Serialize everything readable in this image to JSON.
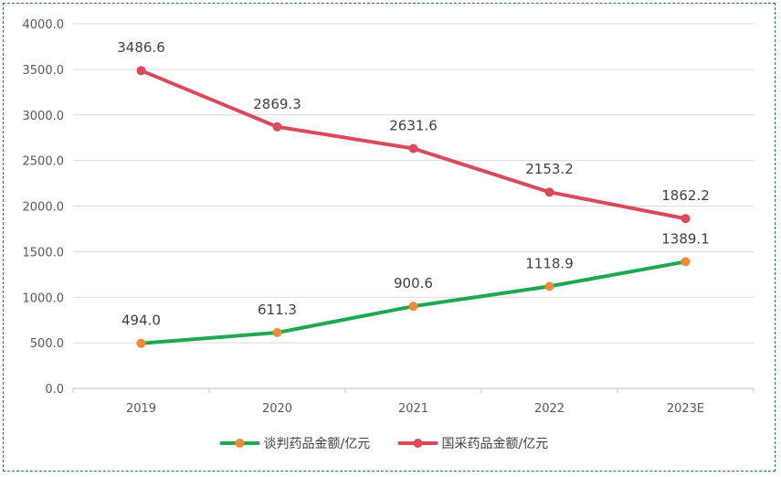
{
  "chart_data": {
    "type": "line",
    "categories": [
      "2019",
      "2020",
      "2021",
      "2022",
      "2023E"
    ],
    "ylim": [
      0,
      4000
    ],
    "yticks": [
      "0.0",
      "500.0",
      "1000.0",
      "1500.0",
      "2000.0",
      "2500.0",
      "3000.0",
      "3500.0",
      "4000.0"
    ],
    "ytick_values": [
      0,
      500,
      1000,
      1500,
      2000,
      2500,
      3000,
      3500,
      4000
    ],
    "grid": true,
    "legend_position": "bottom",
    "series": [
      {
        "name": "谈判药品金额/亿元",
        "values": [
          494.0,
          611.3,
          900.6,
          1118.9,
          1389.1
        ],
        "labels": [
          "494.0",
          "611.3",
          "900.6",
          "1118.9",
          "1389.1"
        ],
        "line_color": "#1fa84f",
        "marker_color": "#ed8b3a"
      },
      {
        "name": "国采药品金额/亿元",
        "values": [
          3486.6,
          2869.3,
          2631.6,
          2153.2,
          1862.2
        ],
        "labels": [
          "3486.6",
          "2869.3",
          "2631.6",
          "2153.2",
          "1862.2"
        ],
        "line_color": "#d94b5a",
        "marker_color": "#d94b5a"
      }
    ]
  }
}
